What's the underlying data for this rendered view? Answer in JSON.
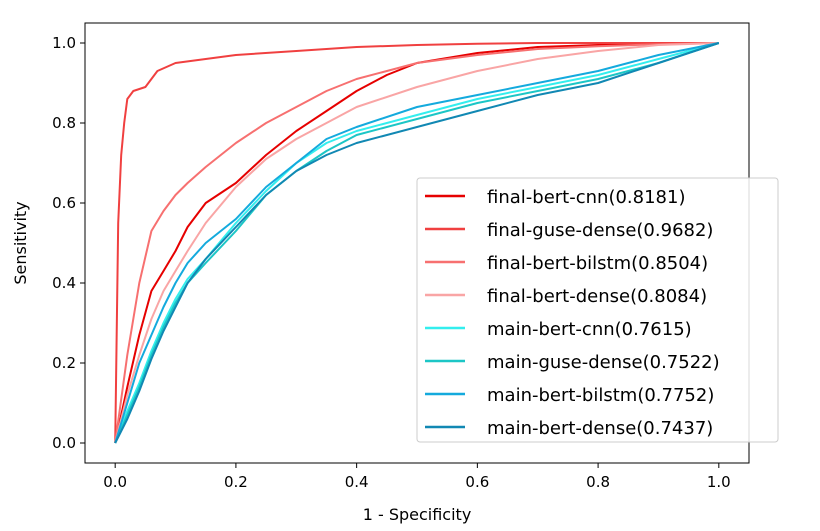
{
  "chart_data": {
    "type": "line",
    "title": "",
    "xlabel": "1 - Specificity",
    "ylabel": "Sensitivity",
    "xlim": [
      -0.05,
      1.05
    ],
    "ylim": [
      -0.05,
      1.05
    ],
    "xticks": [
      "0.0",
      "0.2",
      "0.4",
      "0.6",
      "0.8",
      "1.0"
    ],
    "yticks": [
      "0.0",
      "0.2",
      "0.4",
      "0.6",
      "0.8",
      "1.0"
    ],
    "grid": false,
    "legend_position": "lower-right",
    "series": [
      {
        "name": "final-bert-cnn(0.8181)",
        "color": "#e60000",
        "x": [
          0,
          0.02,
          0.04,
          0.06,
          0.08,
          0.1,
          0.12,
          0.15,
          0.2,
          0.25,
          0.3,
          0.35,
          0.4,
          0.45,
          0.5,
          0.6,
          0.7,
          0.8,
          0.9,
          1.0
        ],
        "y": [
          0,
          0.14,
          0.27,
          0.38,
          0.43,
          0.48,
          0.54,
          0.6,
          0.65,
          0.72,
          0.78,
          0.83,
          0.88,
          0.92,
          0.95,
          0.975,
          0.99,
          0.995,
          0.998,
          1.0
        ]
      },
      {
        "name": "final-guse-dense(0.9682)",
        "color": "#f04040",
        "x": [
          0,
          0.005,
          0.01,
          0.015,
          0.02,
          0.03,
          0.05,
          0.07,
          0.1,
          0.15,
          0.2,
          0.3,
          0.4,
          0.5,
          0.6,
          0.7,
          0.8,
          1.0
        ],
        "y": [
          0,
          0.55,
          0.72,
          0.8,
          0.86,
          0.88,
          0.89,
          0.93,
          0.95,
          0.96,
          0.97,
          0.98,
          0.99,
          0.995,
          0.998,
          1.0,
          1.0,
          1.0
        ]
      },
      {
        "name": "final-bert-bilstm(0.8504)",
        "color": "#f77070",
        "x": [
          0,
          0.02,
          0.04,
          0.06,
          0.08,
          0.1,
          0.12,
          0.15,
          0.2,
          0.25,
          0.3,
          0.35,
          0.4,
          0.5,
          0.6,
          0.7,
          0.8,
          0.9,
          1.0
        ],
        "y": [
          0,
          0.22,
          0.4,
          0.53,
          0.58,
          0.62,
          0.65,
          0.69,
          0.75,
          0.8,
          0.84,
          0.88,
          0.91,
          0.95,
          0.97,
          0.985,
          0.992,
          0.997,
          1.0
        ]
      },
      {
        "name": "final-bert-dense(0.8084)",
        "color": "#f9a5a5",
        "x": [
          0,
          0.02,
          0.04,
          0.06,
          0.08,
          0.1,
          0.12,
          0.15,
          0.2,
          0.25,
          0.3,
          0.35,
          0.4,
          0.5,
          0.6,
          0.7,
          0.8,
          0.9,
          1.0
        ],
        "y": [
          0,
          0.12,
          0.22,
          0.31,
          0.38,
          0.43,
          0.48,
          0.55,
          0.64,
          0.71,
          0.76,
          0.8,
          0.84,
          0.89,
          0.93,
          0.96,
          0.98,
          0.995,
          1.0
        ]
      },
      {
        "name": "main-bert-cnn(0.7615)",
        "color": "#33eeee",
        "x": [
          0,
          0.02,
          0.04,
          0.06,
          0.08,
          0.1,
          0.12,
          0.15,
          0.2,
          0.25,
          0.3,
          0.35,
          0.4,
          0.5,
          0.6,
          0.7,
          0.8,
          0.9,
          1.0
        ],
        "y": [
          0,
          0.08,
          0.15,
          0.23,
          0.3,
          0.36,
          0.41,
          0.46,
          0.55,
          0.63,
          0.7,
          0.75,
          0.78,
          0.82,
          0.86,
          0.89,
          0.92,
          0.96,
          1.0
        ]
      },
      {
        "name": "main-guse-dense(0.7522)",
        "color": "#1cc6c6",
        "x": [
          0,
          0.02,
          0.04,
          0.06,
          0.08,
          0.1,
          0.12,
          0.15,
          0.2,
          0.25,
          0.3,
          0.35,
          0.4,
          0.5,
          0.6,
          0.7,
          0.8,
          0.9,
          1.0
        ],
        "y": [
          0,
          0.07,
          0.14,
          0.22,
          0.29,
          0.35,
          0.4,
          0.45,
          0.53,
          0.62,
          0.68,
          0.73,
          0.77,
          0.81,
          0.85,
          0.88,
          0.91,
          0.95,
          1.0
        ]
      },
      {
        "name": "main-bert-bilstm(0.7752)",
        "color": "#14aadd",
        "x": [
          0,
          0.02,
          0.04,
          0.06,
          0.08,
          0.1,
          0.12,
          0.15,
          0.2,
          0.25,
          0.3,
          0.35,
          0.4,
          0.5,
          0.6,
          0.7,
          0.8,
          0.9,
          1.0
        ],
        "y": [
          0,
          0.1,
          0.2,
          0.27,
          0.34,
          0.4,
          0.45,
          0.5,
          0.56,
          0.64,
          0.7,
          0.76,
          0.79,
          0.84,
          0.87,
          0.9,
          0.93,
          0.97,
          1.0
        ]
      },
      {
        "name": "main-bert-dense(0.7437)",
        "color": "#1188b3",
        "x": [
          0,
          0.02,
          0.04,
          0.06,
          0.08,
          0.1,
          0.12,
          0.15,
          0.2,
          0.25,
          0.3,
          0.35,
          0.4,
          0.5,
          0.6,
          0.7,
          0.8,
          0.9,
          1.0
        ],
        "y": [
          0,
          0.06,
          0.13,
          0.21,
          0.28,
          0.34,
          0.4,
          0.46,
          0.54,
          0.62,
          0.68,
          0.72,
          0.75,
          0.79,
          0.83,
          0.87,
          0.9,
          0.95,
          1.0
        ]
      }
    ]
  }
}
